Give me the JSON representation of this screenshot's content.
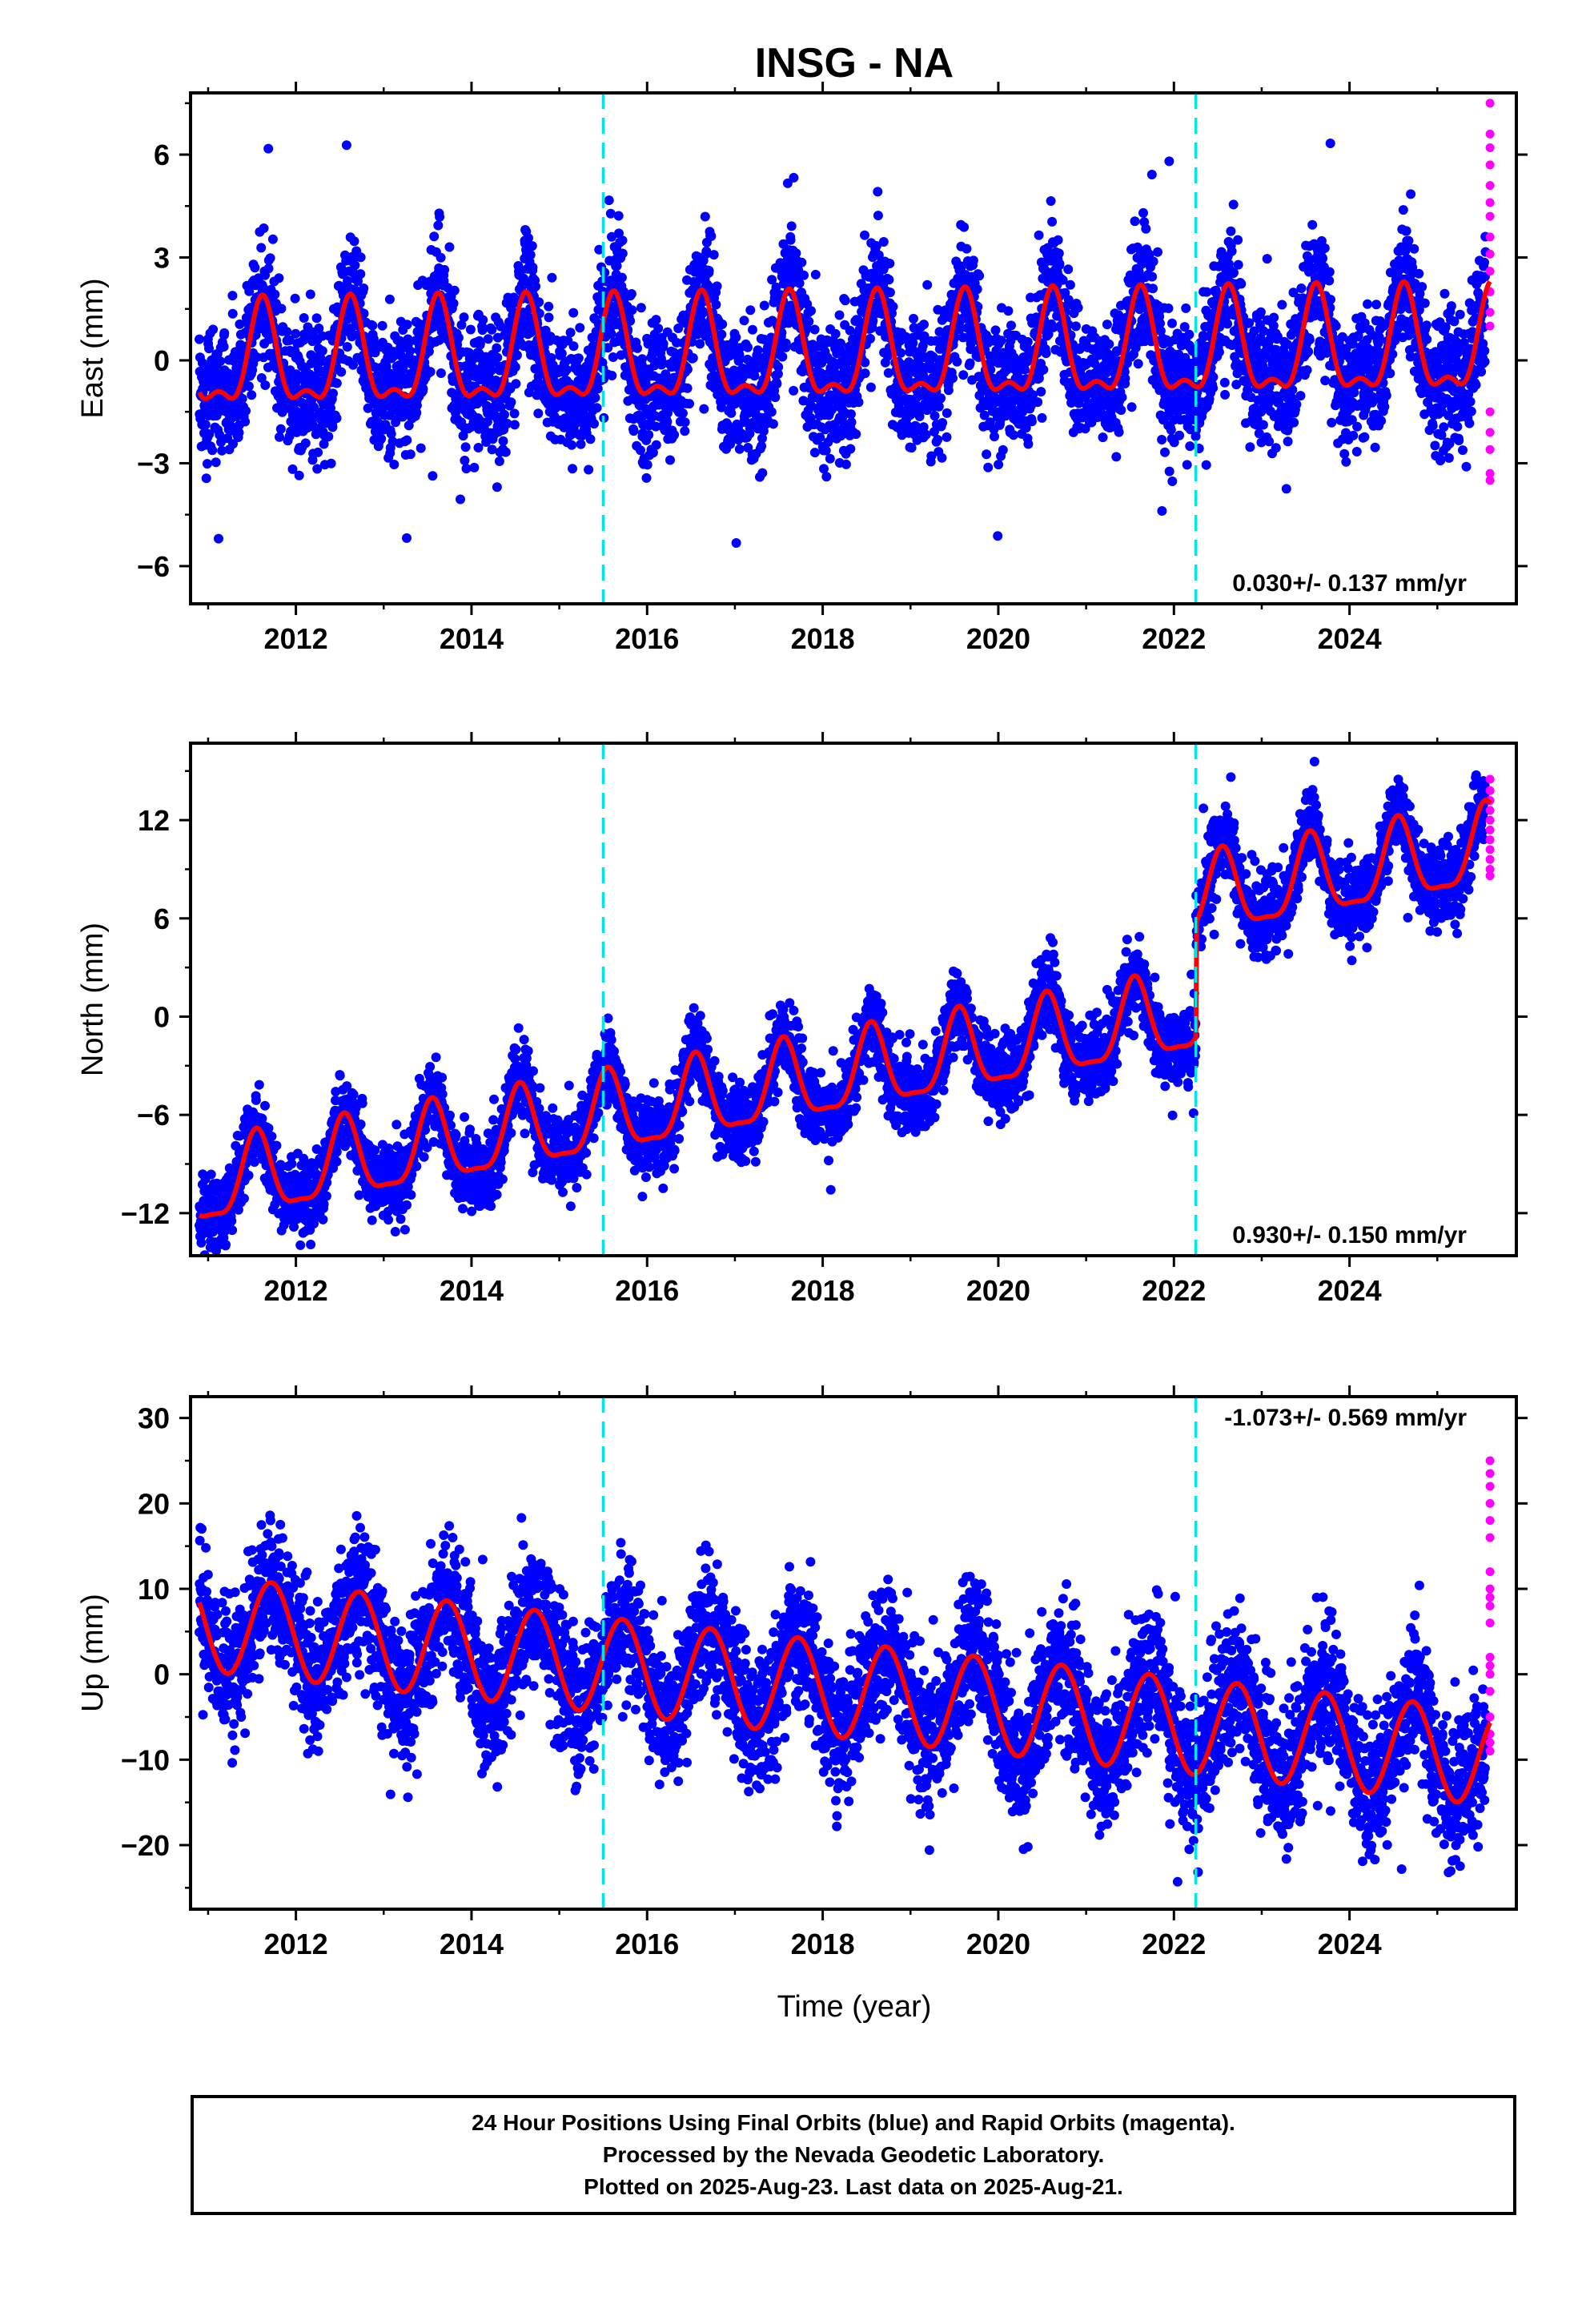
{
  "chart_data": {
    "title": "INSG - NA",
    "x_axis": {
      "label": "Time (year)",
      "range": [
        2010.8,
        2025.9
      ],
      "ticks": [
        2012,
        2014,
        2016,
        2018,
        2020,
        2022,
        2024
      ],
      "tick_labels": [
        "2012",
        "2014",
        "2016",
        "2018",
        "2020",
        "2022",
        "2024"
      ]
    },
    "vertical_markers": {
      "color": "#00e5e5",
      "style": "dashed",
      "x": [
        2015.5,
        2022.25
      ]
    },
    "legend_caption": [
      "24 Hour Positions Using Final Orbits (blue) and Rapid Orbits (magenta).",
      "Processed by the Nevada Geodetic Laboratory.",
      "Plotted on 2025-Aug-23. Last data on 2025-Aug-21."
    ],
    "colors": {
      "final_orbits": "#0000ff",
      "rapid_orbits": "#ff00ff",
      "model_fit": "#ff0000",
      "markers": "#00e5e5"
    },
    "panels": [
      {
        "type": "scatter",
        "ylabel": "East (mm)",
        "ylim": [
          -7.1,
          7.8
        ],
        "yticks": [
          -6,
          -3,
          0,
          3,
          6
        ],
        "ytick_labels": [
          "−6",
          "−3",
          "0",
          "3",
          "6"
        ],
        "rate_label": "0.030+/- 0.137 mm/yr",
        "rate_label_position": "bottom-right",
        "model": {
          "offset": 0.1,
          "rate": 0.03,
          "ref_year": 2018,
          "annual_amp": 1.4,
          "annual_peak": 0.62,
          "semiannual_amp": 0.6,
          "semiannual_peak": 0.62,
          "steps": []
        },
        "scatter_sd": 0.95,
        "rapid_values": [
          7.5,
          6.6,
          6.2,
          5.7,
          5.1,
          4.6,
          4.2,
          3.6,
          3.1,
          2.6,
          2.0,
          1.4,
          1.0,
          -1.5,
          -2.1,
          -2.6,
          -3.3,
          -3.5
        ]
      },
      {
        "type": "scatter",
        "ylabel": "North (mm)",
        "ylim": [
          -14.6,
          16.7
        ],
        "yticks": [
          -12,
          -6,
          0,
          6,
          12
        ],
        "ytick_labels": [
          "−12",
          "−6",
          "0",
          "6",
          "12"
        ],
        "rate_label": "0.930+/- 0.150 mm/yr",
        "rate_label_position": "bottom-right",
        "model": {
          "offset": -3.9,
          "rate": 0.93,
          "ref_year": 2018,
          "annual_amp": 2.4,
          "annual_peak": 0.55,
          "semiannual_amp": 0.7,
          "semiannual_peak": 0.55,
          "steps": [
            {
              "x": 2022.25,
              "size": 7.0
            }
          ]
        },
        "scatter_sd": 1.15,
        "rapid_values": [
          14.5,
          13.8,
          13.2,
          12.6,
          12.0,
          11.4,
          10.8,
          10.2,
          9.6,
          9.0,
          8.6
        ]
      },
      {
        "type": "scatter",
        "ylabel": "Up (mm)",
        "ylim": [
          -27.5,
          32.5
        ],
        "yticks": [
          -20,
          -10,
          0,
          10,
          20,
          30
        ],
        "ytick_labels": [
          "−20",
          "−10",
          "0",
          "10",
          "20",
          "30"
        ],
        "rate_label": "-1.073+/- 0.569 mm/yr",
        "rate_label_position": "top-right",
        "model": {
          "offset": -1.6,
          "rate": -1.073,
          "ref_year": 2018,
          "annual_amp": 5.6,
          "annual_peak": 0.72,
          "semiannual_amp": 0,
          "semiannual_peak": 0.72,
          "steps": []
        },
        "scatter_sd": 3.9,
        "rapid_values": [
          25.0,
          23.5,
          22.0,
          20.0,
          18.0,
          16.0,
          12.0,
          10.0,
          9.0,
          8.0,
          6.0,
          2.0,
          1.0,
          0.0,
          -2.0,
          -5.0,
          -7.0,
          -8.0,
          -9.0
        ]
      }
    ]
  }
}
